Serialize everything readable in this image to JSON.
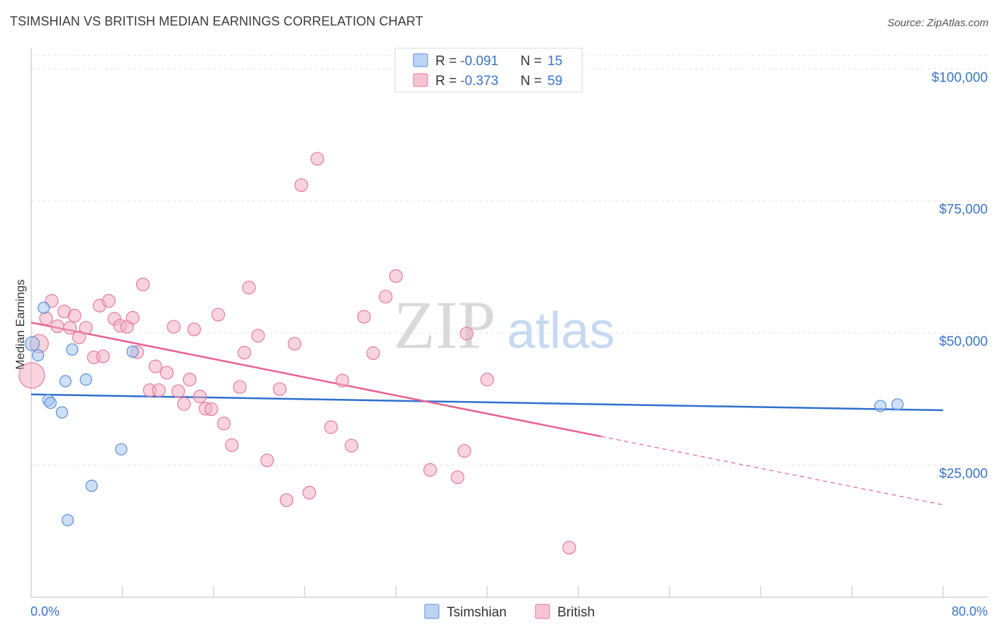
{
  "title": "TSIMSHIAN VS BRITISH MEDIAN EARNINGS CORRELATION CHART",
  "source": "Source: ZipAtlas.com",
  "watermark": {
    "zip": "ZIP",
    "atlas": "atlas"
  },
  "legend": {
    "r_label": "R =",
    "n_label": "N =",
    "rows": [
      {
        "series": "Tsimshian",
        "r": "-0.091",
        "n": "15",
        "color": "#9ec2ef"
      },
      {
        "series": "British",
        "r": "-0.373",
        "n": "59",
        "color": "#f4a9c0"
      }
    ]
  },
  "chart_data": {
    "type": "scatter",
    "ylabel": "Median Earnings",
    "xlabel": "",
    "xlim": [
      0,
      80
    ],
    "ylim": [
      0,
      105000
    ],
    "y_ticks": [
      {
        "value": 25000,
        "label": "$25,000"
      },
      {
        "value": 50000,
        "label": "$50,000"
      },
      {
        "value": 75000,
        "label": "$75,000"
      },
      {
        "value": 100000,
        "label": "$100,000"
      }
    ],
    "x_tick_labels": {
      "left": "0.0%",
      "right": "80.0%"
    },
    "grid": true,
    "series": [
      {
        "name": "Tsimshian",
        "color": "#9ec2ef",
        "stroke": "#5b8fd6",
        "trend": {
          "x0": 0,
          "y0": 38400,
          "x1": 80,
          "y1": 35400,
          "dashed_from": null,
          "line_color": "#2f6fcf"
        },
        "points": [
          [
            0.1,
            48000,
            10
          ],
          [
            0.6,
            45800,
            8
          ],
          [
            1.1,
            54800,
            8
          ],
          [
            1.5,
            37300,
            8
          ],
          [
            1.7,
            36800,
            8
          ],
          [
            2.7,
            35000,
            8
          ],
          [
            3.0,
            40900,
            8
          ],
          [
            3.2,
            14600,
            8
          ],
          [
            3.6,
            46900,
            8
          ],
          [
            4.8,
            41200,
            8
          ],
          [
            5.3,
            21100,
            8
          ],
          [
            7.9,
            28000,
            8
          ],
          [
            8.9,
            46500,
            8
          ],
          [
            74.5,
            36200,
            8
          ],
          [
            76.0,
            36500,
            8
          ]
        ]
      },
      {
        "name": "British",
        "color": "#f4a9c0",
        "stroke": "#e57a9c",
        "trend": {
          "x0": 0,
          "y0": 52000,
          "x1": 80,
          "y1": 17500,
          "dashed_from": 50,
          "line_color": "#e8628d"
        },
        "points": [
          [
            0.05,
            42000,
            18
          ],
          [
            0.7,
            48000,
            13
          ],
          [
            1.3,
            52800,
            9
          ],
          [
            1.8,
            56100,
            9
          ],
          [
            2.3,
            51300,
            9
          ],
          [
            2.9,
            54100,
            9
          ],
          [
            3.4,
            51000,
            9
          ],
          [
            3.8,
            53300,
            9
          ],
          [
            4.2,
            49200,
            9
          ],
          [
            4.8,
            51000,
            9
          ],
          [
            5.5,
            45400,
            9
          ],
          [
            6.0,
            55200,
            9
          ],
          [
            6.3,
            45600,
            9
          ],
          [
            6.8,
            56100,
            9
          ],
          [
            7.3,
            52700,
            9
          ],
          [
            7.8,
            51400,
            9
          ],
          [
            8.4,
            51200,
            9
          ],
          [
            8.9,
            52900,
            9
          ],
          [
            9.3,
            46400,
            9
          ],
          [
            9.8,
            59200,
            9
          ],
          [
            10.4,
            39200,
            9
          ],
          [
            10.9,
            43700,
            9
          ],
          [
            11.2,
            39200,
            9
          ],
          [
            11.9,
            42500,
            9
          ],
          [
            12.5,
            51200,
            9
          ],
          [
            12.9,
            39000,
            9
          ],
          [
            13.4,
            36600,
            9
          ],
          [
            13.9,
            41200,
            9
          ],
          [
            14.3,
            50700,
            9
          ],
          [
            14.8,
            38000,
            9
          ],
          [
            15.3,
            35700,
            9
          ],
          [
            15.8,
            35600,
            9
          ],
          [
            16.4,
            53500,
            9
          ],
          [
            16.9,
            32900,
            9
          ],
          [
            17.6,
            28800,
            9
          ],
          [
            18.3,
            39800,
            9
          ],
          [
            18.7,
            46300,
            9
          ],
          [
            19.1,
            58600,
            9
          ],
          [
            19.9,
            49500,
            9
          ],
          [
            20.7,
            25900,
            9
          ],
          [
            21.8,
            39400,
            9
          ],
          [
            22.4,
            18400,
            9
          ],
          [
            23.1,
            48000,
            9
          ],
          [
            23.7,
            78000,
            9
          ],
          [
            24.4,
            19800,
            9
          ],
          [
            25.1,
            83000,
            9
          ],
          [
            26.3,
            32200,
            9
          ],
          [
            27.3,
            41000,
            9
          ],
          [
            28.1,
            28700,
            9
          ],
          [
            29.2,
            53100,
            9
          ],
          [
            30.0,
            46200,
            9
          ],
          [
            31.1,
            56900,
            9
          ],
          [
            32.0,
            60800,
            9
          ],
          [
            35.0,
            24100,
            9
          ],
          [
            37.4,
            22700,
            9
          ],
          [
            38.0,
            27700,
            9
          ],
          [
            38.2,
            49900,
            9
          ],
          [
            40.0,
            41200,
            9
          ],
          [
            47.2,
            9400,
            9
          ]
        ]
      }
    ]
  }
}
